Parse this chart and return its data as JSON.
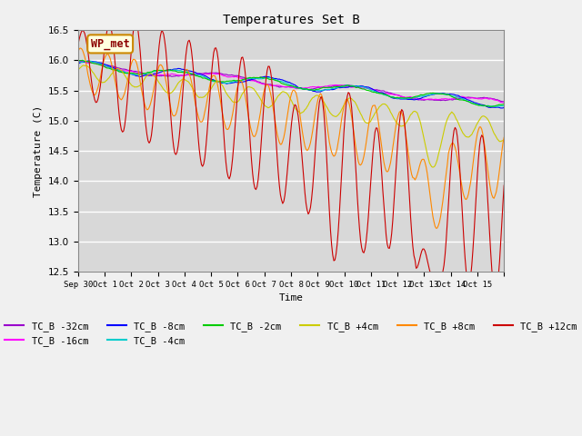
{
  "title": "Temperatures Set B",
  "xlabel": "Time",
  "ylabel": "Temperature (C)",
  "ylim": [
    12.5,
    16.5
  ],
  "xlim": [
    0,
    16
  ],
  "x_tick_positions": [
    0,
    1,
    2,
    3,
    4,
    5,
    6,
    7,
    8,
    9,
    10,
    11,
    12,
    13,
    14,
    15,
    16
  ],
  "x_tick_labels": [
    "Sep 30",
    "Oct 1",
    "Oct 2",
    "Oct 3",
    "Oct 4",
    "Oct 5",
    "Oct 6",
    "Oct 7",
    "Oct 8",
    "Oct 9",
    "Oct 10",
    "Oct 11",
    "Oct 12",
    "Oct 13",
    "Oct 14",
    "Oct 15",
    ""
  ],
  "wp_met_label": "WP_met",
  "series_colors": {
    "TC_B -32cm": "#9900cc",
    "TC_B -16cm": "#ff00ff",
    "TC_B -8cm": "#0000ff",
    "TC_B -4cm": "#00cccc",
    "TC_B -2cm": "#00cc00",
    "TC_B +4cm": "#cccc00",
    "TC_B +8cm": "#ff8800",
    "TC_B +12cm": "#cc0000"
  },
  "bg_color": "#d8d8d8",
  "grid_color": "#ffffff"
}
